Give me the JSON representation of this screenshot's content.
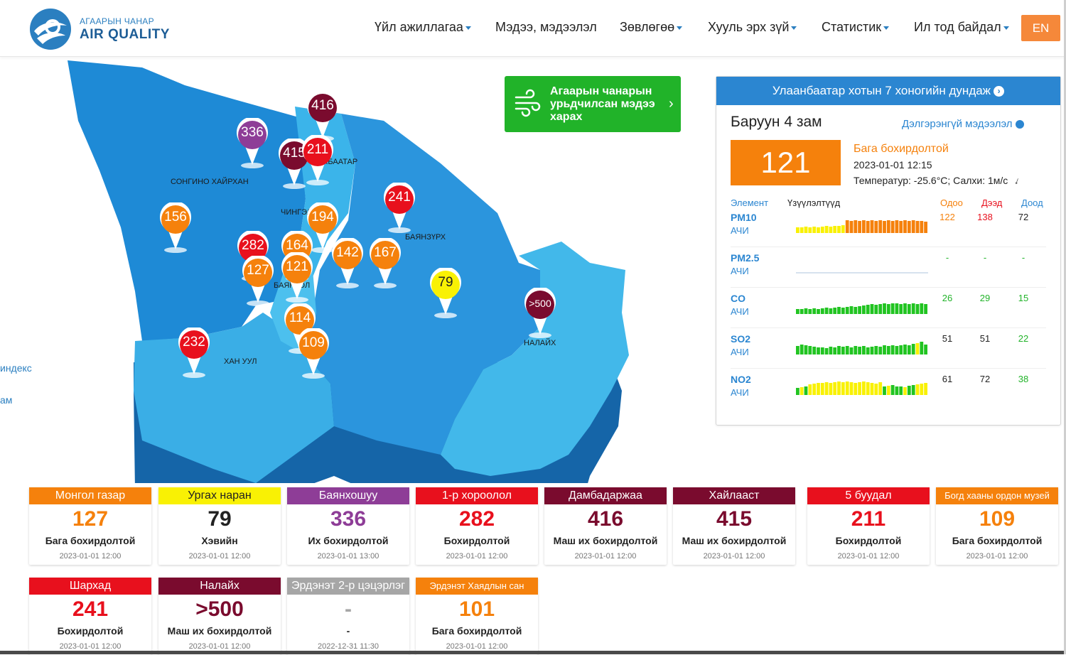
{
  "header": {
    "logo_sub": "АГААРЫН ЧАНАР",
    "logo_main": "AIR QUALITY",
    "nav": [
      {
        "label": "Үйл ажиллагаа",
        "dropdown": true
      },
      {
        "label": "Мэдээ, мэдээлэл",
        "dropdown": false
      },
      {
        "label": "Зөвлөгөө",
        "dropdown": true
      },
      {
        "label": "Хууль эрх зүй",
        "dropdown": true
      },
      {
        "label": "Статистик",
        "dropdown": true
      },
      {
        "label": "Ил тод байдал",
        "dropdown": true
      }
    ],
    "lang": "EN"
  },
  "map": {
    "districts": [
      {
        "name": "СОНГИНО ХАЙРХАН"
      },
      {
        "name": "СҮХБААТАР"
      },
      {
        "name": "ЧИНГЭЛТЭЙ"
      },
      {
        "name": "БАЯНЗҮРХ"
      },
      {
        "name": "БАЯНГОЛ"
      },
      {
        "name": "ХАН УУЛ"
      },
      {
        "name": "НАЛАЙХ"
      }
    ],
    "pins": [
      {
        "value": "416",
        "color": "#7a0b2e"
      },
      {
        "value": "336",
        "color": "#8e3d97"
      },
      {
        "value": "415",
        "color": "#7a0b2e"
      },
      {
        "value": "211",
        "color": "#e8101d"
      },
      {
        "value": "241",
        "color": "#e8101d"
      },
      {
        "value": "156",
        "color": "#f5810c"
      },
      {
        "value": "194",
        "color": "#f5810c"
      },
      {
        "value": "282",
        "color": "#e8101d"
      },
      {
        "value": "164",
        "color": "#f5810c"
      },
      {
        "value": "142",
        "color": "#f5810c"
      },
      {
        "value": "167",
        "color": "#f5810c"
      },
      {
        "value": "127",
        "color": "#f5810c"
      },
      {
        "value": "121",
        "color": "#f5810c"
      },
      {
        "value": "79",
        "color": "#f9f104"
      },
      {
        "value": ">500",
        "color": "#7a0b2e"
      },
      {
        "value": "114",
        "color": "#f5810c"
      },
      {
        "value": "232",
        "color": "#e8101d"
      },
      {
        "value": "109",
        "color": "#f5810c"
      }
    ]
  },
  "side_links": [
    "индекс",
    "ам",
    ""
  ],
  "forecast": {
    "label": "Агаарын чанарын урьдчилсан мэдээ харах"
  },
  "panel": {
    "title": "Улаанбаатар хотын 7 хоногийн дундаж",
    "station": "Баруун 4 зам",
    "detail_link": "Дэлгэрэнгүй мэдээлэл",
    "aqi": "121",
    "status": "Бага бохирдолтой",
    "time": "2023-01-01 12:15",
    "weather": "Температур: -25.6°C; Салхи: 1м/с",
    "columns": {
      "element": "Элемент",
      "trend": "Үзүүлэлтүүд",
      "now": "Одоо",
      "max": "Дээд",
      "min": "Доод"
    },
    "elements": [
      {
        "name": "PM10",
        "unit": "АЧИ",
        "now": "122",
        "max": "138",
        "min": "72",
        "now_color": "#f5810c",
        "max_color": "#e8101d",
        "min_color": "#222222",
        "trend": [
          0.4,
          0.4,
          0.45,
          0.4,
          0.45,
          0.4,
          0.45,
          0.5,
          0.45,
          0.5,
          0.5,
          0.55,
          0.9,
          0.85,
          0.9,
          0.85,
          0.9,
          0.85,
          0.9,
          0.85,
          0.9,
          0.85,
          0.9,
          0.85,
          0.9,
          0.85,
          0.9,
          0.85,
          0.9,
          0.85,
          0.85,
          0.8
        ],
        "trend_colors": [
          "#f9f104",
          "#f9f104",
          "#f9f104",
          "#f9f104",
          "#f9f104",
          "#f9f104",
          "#f9f104",
          "#f9f104",
          "#f9f104",
          "#f9f104",
          "#f9f104",
          "#f9f104",
          "#f5810c",
          "#f5810c",
          "#f5810c",
          "#f5810c",
          "#f5810c",
          "#f5810c",
          "#f5810c",
          "#f5810c",
          "#f5810c",
          "#f5810c",
          "#f5810c",
          "#f5810c",
          "#f5810c",
          "#f5810c",
          "#f5810c",
          "#f5810c",
          "#f5810c",
          "#f5810c",
          "#f5810c",
          "#f5810c"
        ]
      },
      {
        "name": "PM2.5",
        "unit": "АЧИ",
        "now": "-",
        "max": "-",
        "min": "-",
        "now_color": "#21b329",
        "max_color": "#21b329",
        "min_color": "#21b329",
        "trend": [],
        "trend_colors": []
      },
      {
        "name": "CO",
        "unit": "АЧИ",
        "now": "26",
        "max": "29",
        "min": "15",
        "now_color": "#21b329",
        "max_color": "#21b329",
        "min_color": "#21b329",
        "trend": [
          0.35,
          0.35,
          0.4,
          0.35,
          0.4,
          0.35,
          0.4,
          0.45,
          0.4,
          0.45,
          0.5,
          0.45,
          0.5,
          0.55,
          0.5,
          0.55,
          0.6,
          0.65,
          0.7,
          0.65,
          0.7,
          0.75,
          0.7,
          0.75,
          0.75,
          0.7,
          0.75,
          0.7,
          0.75,
          0.7,
          0.75,
          0.7
        ],
        "trend_colors": [
          "#21c421",
          "#21c421",
          "#21c421",
          "#21c421",
          "#21c421",
          "#21c421",
          "#21c421",
          "#21c421",
          "#21c421",
          "#21c421",
          "#21c421",
          "#21c421",
          "#21c421",
          "#21c421",
          "#21c421",
          "#21c421",
          "#21c421",
          "#21c421",
          "#21c421",
          "#21c421",
          "#21c421",
          "#21c421",
          "#21c421",
          "#21c421",
          "#21c421",
          "#21c421",
          "#21c421",
          "#21c421",
          "#21c421",
          "#21c421",
          "#21c421",
          "#21c421"
        ]
      },
      {
        "name": "SO2",
        "unit": "АЧИ",
        "now": "51",
        "max": "51",
        "min": "22",
        "now_color": "#222222",
        "max_color": "#222222",
        "min_color": "#21b329",
        "trend": [
          0.6,
          0.7,
          0.65,
          0.6,
          0.55,
          0.5,
          0.5,
          0.45,
          0.55,
          0.5,
          0.6,
          0.55,
          0.6,
          0.5,
          0.6,
          0.55,
          0.6,
          0.5,
          0.55,
          0.6,
          0.55,
          0.65,
          0.6,
          0.65,
          0.6,
          0.65,
          0.7,
          0.65,
          0.75,
          0.8,
          0.9,
          0.7
        ],
        "trend_colors": [
          "#21c421",
          "#21c421",
          "#21c421",
          "#21c421",
          "#21c421",
          "#21c421",
          "#21c421",
          "#21c421",
          "#21c421",
          "#21c421",
          "#21c421",
          "#21c421",
          "#21c421",
          "#21c421",
          "#21c421",
          "#21c421",
          "#21c421",
          "#21c421",
          "#21c421",
          "#21c421",
          "#21c421",
          "#21c421",
          "#21c421",
          "#21c421",
          "#21c421",
          "#21c421",
          "#21c421",
          "#21c421",
          "#21c421",
          "#f9f104",
          "#21c421",
          "#21c421"
        ]
      },
      {
        "name": "NO2",
        "unit": "АЧИ",
        "now": "61",
        "max": "72",
        "min": "38",
        "now_color": "#222222",
        "max_color": "#222222",
        "min_color": "#21b329",
        "trend": [
          0.5,
          0.55,
          0.6,
          0.75,
          0.8,
          0.85,
          0.85,
          0.9,
          0.85,
          0.9,
          0.95,
          0.9,
          0.95,
          0.9,
          0.85,
          0.9,
          0.95,
          0.9,
          0.85,
          0.8,
          0.9,
          0.6,
          0.65,
          0.7,
          0.6,
          0.6,
          0.55,
          0.65,
          0.7,
          0.75,
          0.8,
          0.85
        ],
        "trend_colors": [
          "#21c421",
          "#f9f104",
          "#21c421",
          "#f9f104",
          "#f9f104",
          "#f9f104",
          "#f9f104",
          "#f9f104",
          "#f9f104",
          "#f9f104",
          "#f9f104",
          "#f9f104",
          "#f9f104",
          "#f9f104",
          "#f9f104",
          "#f9f104",
          "#f9f104",
          "#f9f104",
          "#f9f104",
          "#f9f104",
          "#f9f104",
          "#21c421",
          "#f9f104",
          "#21c421",
          "#21c421",
          "#21c421",
          "#f9f104",
          "#21c421",
          "#21c421",
          "#f9f104",
          "#f9f104",
          "#f9f104"
        ]
      }
    ]
  },
  "cards": [
    {
      "name": "Монгол газар",
      "value": "127",
      "status": "Бага бохирдолтой",
      "time": "2023-01-01 12:00",
      "color": "#f5810c",
      "val_color": "#f5810c",
      "head_text": "light"
    },
    {
      "name": "Ургах наран",
      "value": "79",
      "status": "Хэвийн",
      "time": "2023-01-01 12:00",
      "color": "#f9f104",
      "val_color": "#222222",
      "head_text": "dark"
    },
    {
      "name": "Баянхошуу",
      "value": "336",
      "status": "Их бохирдолтой",
      "time": "2023-01-01 13:00",
      "color": "#8e3d97",
      "val_color": "#8e3d97",
      "head_text": "light"
    },
    {
      "name": "1-р хороолол",
      "value": "282",
      "status": "Бохирдолтой",
      "time": "2023-01-01 12:00",
      "color": "#e8101d",
      "val_color": "#e8101d",
      "head_text": "light"
    },
    {
      "name": "Дамбадаржаа",
      "value": "416",
      "status": "Маш их бохирдолтой",
      "time": "2023-01-01 12:00",
      "color": "#7a0b2e",
      "val_color": "#7a0b2e",
      "head_text": "light"
    },
    {
      "name": "Хайлааст",
      "value": "415",
      "status": "Маш их бохирдолтой",
      "time": "2023-01-01 12:00",
      "color": "#7a0b2e",
      "val_color": "#7a0b2e",
      "head_text": "light"
    },
    {
      "name": "5 буудал",
      "value": "211",
      "status": "Бохирдолтой",
      "time": "2023-01-01 12:00",
      "color": "#e8101d",
      "val_color": "#e8101d",
      "head_text": "light"
    },
    {
      "name": "Богд хааны ордон музей",
      "value": "109",
      "status": "Бага бохирдолтой",
      "time": "2023-01-01 12:00",
      "color": "#f5810c",
      "val_color": "#f5810c",
      "head_text": "light",
      "small": true
    },
    {
      "name": "Шархад",
      "value": "241",
      "status": "Бохирдолтой",
      "time": "2023-01-01 12:00",
      "color": "#e8101d",
      "val_color": "#e8101d",
      "head_text": "light"
    },
    {
      "name": "Налайх",
      "value": ">500",
      "status": "Маш их бохирдолтой",
      "time": "2023-01-01 12:00",
      "color": "#7a0b2e",
      "val_color": "#7a0b2e",
      "head_text": "light"
    },
    {
      "name": "Эрдэнэт 2-р цэцэрлэг",
      "value": "-",
      "status": "-",
      "time": "2022-12-31 11:30",
      "color": "#a6a6a6",
      "val_color": "#a6a6a6",
      "head_text": "light"
    },
    {
      "name": "Эрдэнэт Хаядлын сан",
      "value": "101",
      "status": "Бага бохирдолтой",
      "time": "2023-01-01 12:00",
      "color": "#f5810c",
      "val_color": "#f5810c",
      "head_text": "light",
      "small": true
    }
  ]
}
